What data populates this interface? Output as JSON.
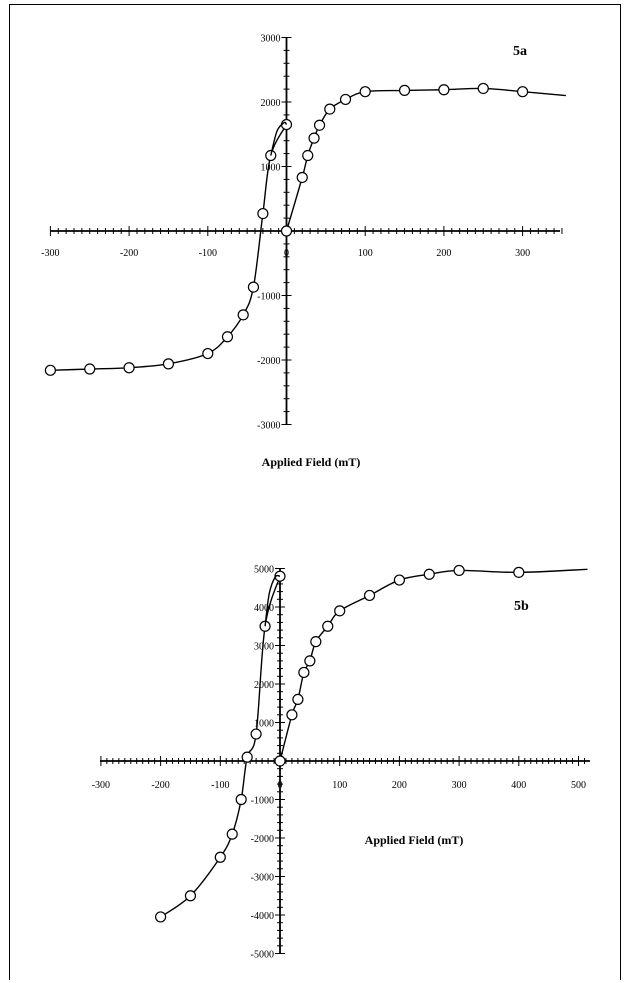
{
  "chart_data": [
    {
      "type": "line",
      "panel_label": "5a",
      "xlabel": "Applied Field (mT)",
      "ylabel": "",
      "xlim": [
        -300,
        355
      ],
      "ylim": [
        -3000,
        3000
      ],
      "x_ticks": [
        -300,
        -200,
        -100,
        0,
        100,
        200,
        300
      ],
      "y_ticks": [
        -3000,
        -2000,
        -1000,
        0,
        1000,
        2000,
        3000
      ],
      "x_tick_labels": [
        "-300",
        "-200",
        "-100",
        "0",
        "100",
        "200",
        "300"
      ],
      "y_tick_labels": [
        "-3000",
        "-2000",
        "-1000",
        "0",
        "1000",
        "2000",
        "3000"
      ],
      "y_tick_labels_shown": [
        "3000",
        "2000",
        "1000",
        "-1000",
        "-2000",
        "-3000"
      ],
      "grid": false,
      "series": [
        {
          "role": "initial-magnetization",
          "x": [
            0,
            20,
            27,
            35,
            42,
            55,
            75,
            100,
            150,
            200,
            250,
            300,
            355
          ],
          "y": [
            0,
            830,
            1170,
            1440,
            1640,
            1890,
            2040,
            2160,
            2180,
            2190,
            2210,
            2160,
            2100
          ],
          "markers": [
            true,
            true,
            true,
            true,
            true,
            true,
            true,
            true,
            true,
            true,
            true,
            true,
            false
          ]
        },
        {
          "role": "descending-branch",
          "x": [
            0,
            -20,
            -30,
            -42,
            -55,
            -75,
            -100,
            -150,
            -200,
            -250,
            -300
          ],
          "y": [
            1650,
            1170,
            270,
            -870,
            -1300,
            -1640,
            -1900,
            -2060,
            -2120,
            -2140,
            -2160
          ],
          "markers": [
            true,
            true,
            true,
            true,
            true,
            true,
            true,
            true,
            true,
            true,
            true
          ]
        },
        {
          "role": "upper-loop-connector",
          "x": [
            -20,
            -12,
            -3,
            0
          ],
          "y": [
            1170,
            1550,
            1680,
            1650
          ],
          "markers": [
            false,
            false,
            false,
            false
          ]
        }
      ]
    },
    {
      "type": "line",
      "panel_label": "5b",
      "xlabel": "Applied Field (mT)",
      "ylabel": "",
      "xlim": [
        -300,
        515
      ],
      "ylim": [
        -5000,
        5000
      ],
      "x_ticks": [
        -300,
        -200,
        -100,
        0,
        100,
        200,
        300,
        400,
        500
      ],
      "y_ticks": [
        -5000,
        -4000,
        -3000,
        -2000,
        -1000,
        0,
        1000,
        2000,
        3000,
        4000,
        5000
      ],
      "x_tick_labels": [
        "-300",
        "-200",
        "-100",
        "0",
        "100",
        "200",
        "300",
        "400",
        "500"
      ],
      "y_tick_labels": [
        "-5000",
        "-4000",
        "-3000",
        "-2000",
        "-1000",
        "0",
        "1000",
        "2000",
        "3000",
        "4000",
        "5000"
      ],
      "y_tick_labels_shown": [
        "5000",
        "4000",
        "3000",
        "2000",
        "1000",
        "-1000",
        "-2000",
        "-3000",
        "-4000",
        "-5000"
      ],
      "grid": false,
      "series": [
        {
          "role": "initial-magnetization",
          "x": [
            0,
            20,
            30,
            40,
            50,
            60,
            80,
            100,
            150,
            200,
            250,
            300,
            400,
            515
          ],
          "y": [
            0,
            1200,
            1600,
            2300,
            2600,
            3100,
            3500,
            3900,
            4300,
            4700,
            4850,
            4950,
            4900,
            4980
          ],
          "markers": [
            true,
            true,
            true,
            true,
            true,
            true,
            true,
            true,
            true,
            true,
            true,
            true,
            true,
            false
          ]
        },
        {
          "role": "descending-branch",
          "x": [
            0,
            -25,
            -40,
            -55,
            -65,
            -80,
            -100,
            -150,
            -200
          ],
          "y": [
            4800,
            3500,
            700,
            100,
            -1000,
            -1900,
            -2500,
            -3500,
            -4050
          ],
          "markers": [
            true,
            true,
            true,
            true,
            true,
            true,
            true,
            true,
            true
          ]
        },
        {
          "role": "upper-loop-connector",
          "x": [
            -25,
            -18,
            -8,
            0
          ],
          "y": [
            3500,
            4350,
            4780,
            4800
          ],
          "markers": [
            false,
            false,
            false,
            false
          ]
        }
      ]
    }
  ]
}
